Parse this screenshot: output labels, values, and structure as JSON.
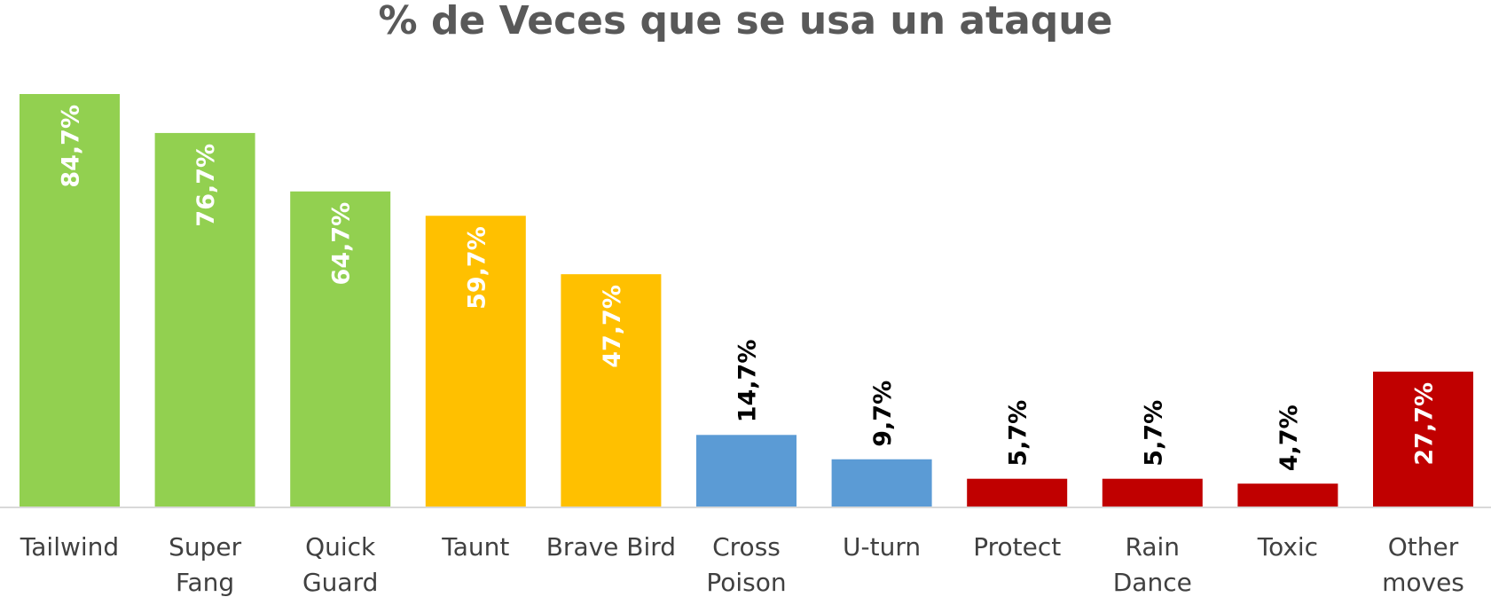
{
  "chart_data": {
    "type": "bar",
    "title": "% de Veces que se usa un ataque",
    "xlabel": "",
    "ylabel": "",
    "ylim": [
      0,
      100
    ],
    "grid": false,
    "categories": [
      [
        "Tailwind"
      ],
      [
        "Super",
        "Fang"
      ],
      [
        "Quick",
        "Guard"
      ],
      [
        "Taunt"
      ],
      [
        "Brave Bird"
      ],
      [
        "Cross",
        "Poison"
      ],
      [
        "U-turn"
      ],
      [
        "Protect"
      ],
      [
        "Rain",
        "Dance"
      ],
      [
        "Toxic"
      ],
      [
        "Other",
        "moves"
      ]
    ],
    "values": [
      84.7,
      76.7,
      64.7,
      59.7,
      47.7,
      14.7,
      9.7,
      5.7,
      5.7,
      4.7,
      27.7
    ],
    "data_labels": [
      "84,7%",
      "76,7%",
      "64,7%",
      "59,7%",
      "47,7%",
      "14,7%",
      "9,7%",
      "5,7%",
      "5,7%",
      "4,7%",
      "27,7%"
    ],
    "colors": [
      "#92d050",
      "#92d050",
      "#92d050",
      "#ffc000",
      "#ffc000",
      "#5b9bd5",
      "#5b9bd5",
      "#c00000",
      "#c00000",
      "#c00000",
      "#c00000"
    ],
    "label_inside": [
      true,
      true,
      true,
      true,
      true,
      false,
      false,
      false,
      false,
      false,
      true
    ]
  }
}
